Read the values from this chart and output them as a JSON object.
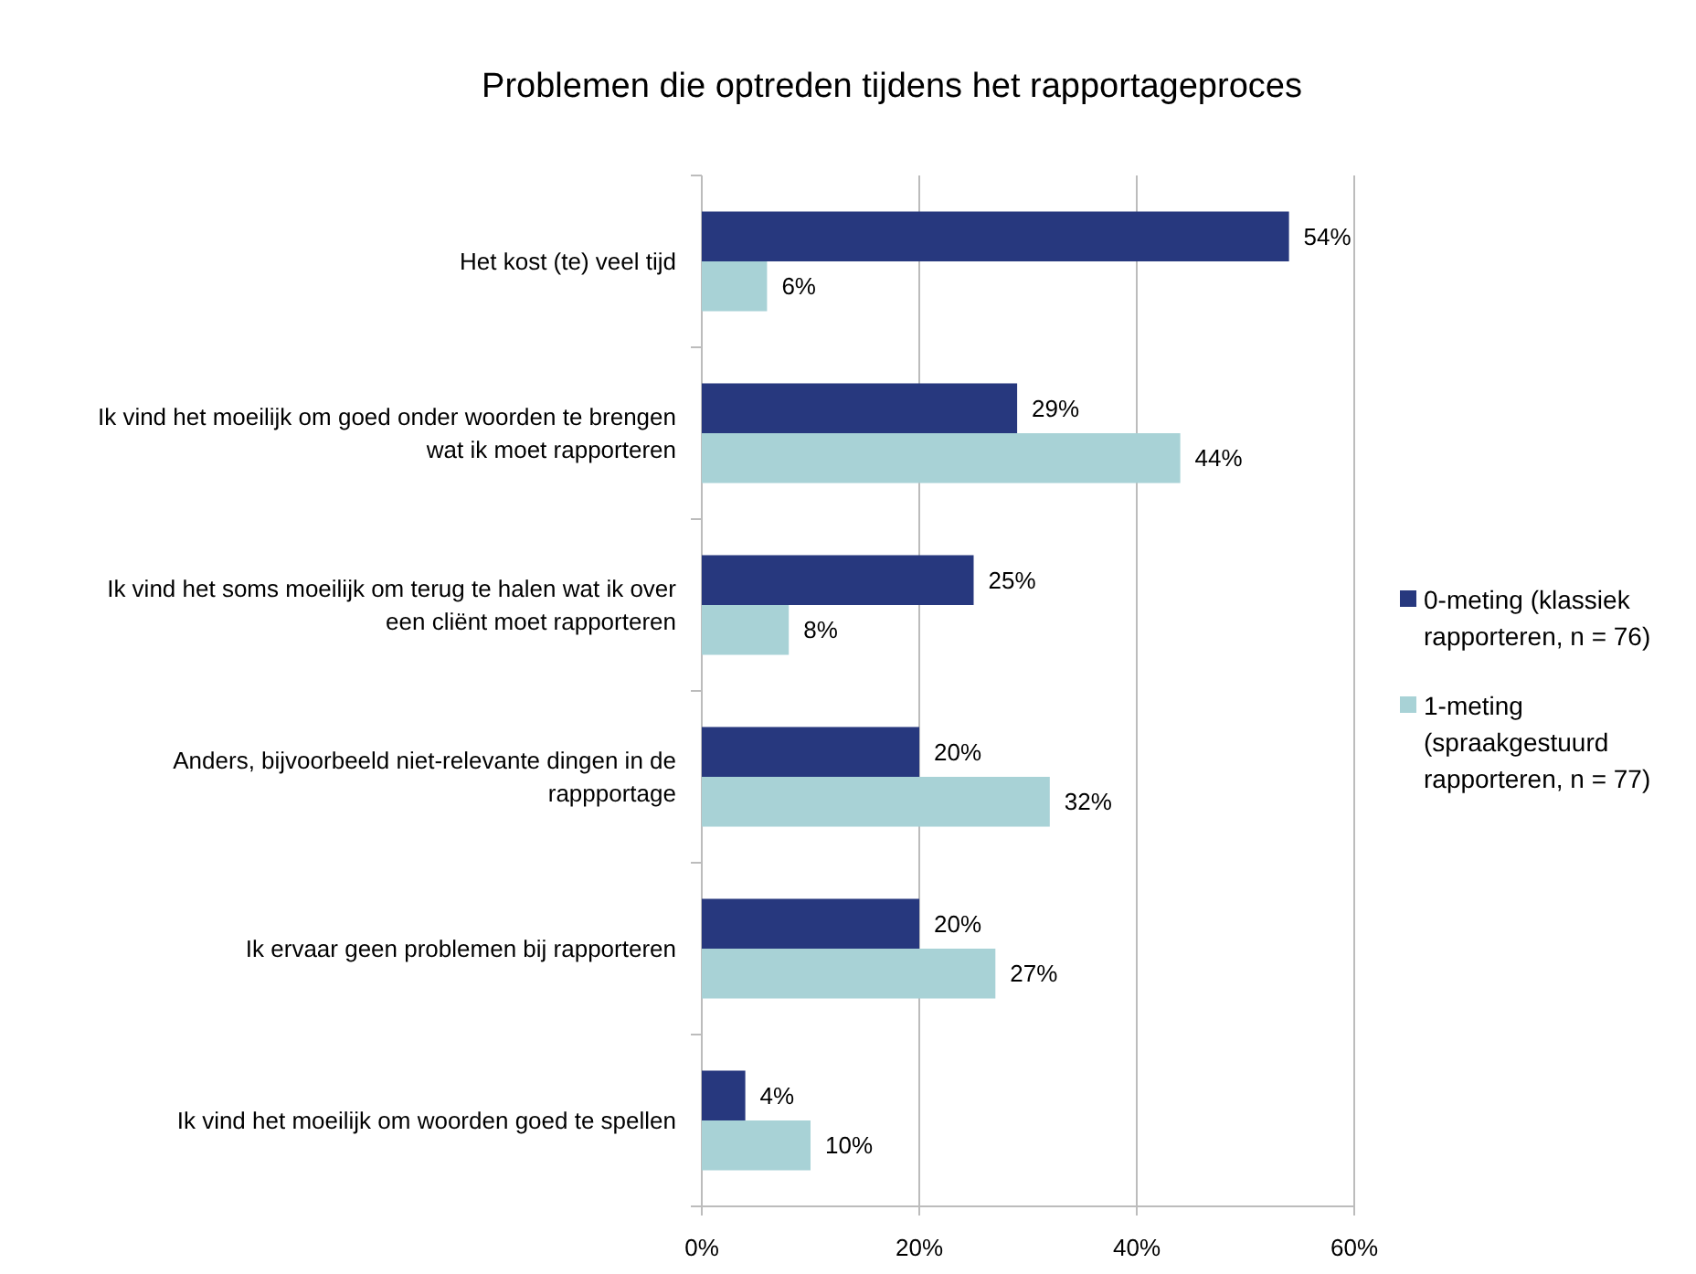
{
  "chart_data": {
    "type": "bar",
    "orientation": "horizontal",
    "title": "Problemen die optreden tijdens het rapportageproces",
    "categories": [
      "Het kost (te) veel tijd",
      "Ik vind het moeilijk om goed onder woorden te brengen wat ik moet rapporteren",
      "Ik vind het soms moeilijk om terug te halen wat ik over een cliënt moet rapporteren",
      "Anders, bijvoorbeeld niet-relevante dingen in de rappportage",
      "Ik ervaar geen problemen bij rapporteren",
      "Ik vind het moeilijk om woorden goed te spellen"
    ],
    "series": [
      {
        "name": "0-meting (klassiek rapporteren, n = 76)",
        "color": "#27387e",
        "values": [
          54,
          29,
          25,
          20,
          20,
          4
        ],
        "value_labels": [
          "54%",
          "29%",
          "25%",
          "20%",
          "20%",
          "4%"
        ]
      },
      {
        "name": "1-meting (spraakgestuurd rapporteren, n = 77)",
        "color": "#a8d2d6",
        "values": [
          6,
          44,
          8,
          32,
          27,
          10
        ],
        "value_labels": [
          "6%",
          "44%",
          "8%",
          "32%",
          "27%",
          "10%"
        ]
      }
    ],
    "xlim": [
      0,
      60
    ],
    "xticks": [
      {
        "value": 0,
        "label": "0%"
      },
      {
        "value": 20,
        "label": "20%"
      },
      {
        "value": 40,
        "label": "40%"
      },
      {
        "value": 60,
        "label": "60%"
      }
    ],
    "grid": "x",
    "legend": "right"
  }
}
